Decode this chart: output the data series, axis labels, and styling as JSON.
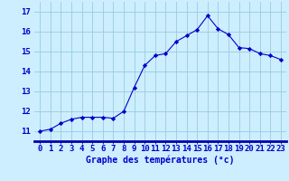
{
  "x": [
    0,
    1,
    2,
    3,
    4,
    5,
    6,
    7,
    8,
    9,
    10,
    11,
    12,
    13,
    14,
    15,
    16,
    17,
    18,
    19,
    20,
    21,
    22,
    23
  ],
  "y": [
    11.0,
    11.1,
    11.4,
    11.6,
    11.7,
    11.7,
    11.7,
    11.65,
    12.0,
    13.2,
    14.3,
    14.8,
    14.9,
    15.5,
    15.8,
    16.1,
    16.8,
    16.15,
    15.85,
    15.2,
    15.15,
    14.9,
    14.8,
    14.6
  ],
  "xlabel": "Graphe des températures (°c)",
  "bg_color": "#cceeff",
  "grid_color": "#99ccdd",
  "line_color": "#0000cc",
  "marker": "D",
  "marker_size": 2.2,
  "ylim": [
    10.5,
    17.5
  ],
  "xlim": [
    -0.5,
    23.5
  ],
  "yticks": [
    11,
    12,
    13,
    14,
    15,
    16,
    17
  ],
  "xtick_labels": [
    "0",
    "1",
    "2",
    "3",
    "4",
    "5",
    "6",
    "7",
    "8",
    "9",
    "10",
    "11",
    "12",
    "13",
    "14",
    "15",
    "16",
    "17",
    "18",
    "19",
    "20",
    "21",
    "22",
    "23"
  ],
  "xlabel_color": "#0000cc",
  "xlabel_fontsize": 7,
  "tick_color": "#0000cc",
  "tick_fontsize": 6.5,
  "spine_color": "#0000cc",
  "axis_bottom_color": "#0000aa"
}
